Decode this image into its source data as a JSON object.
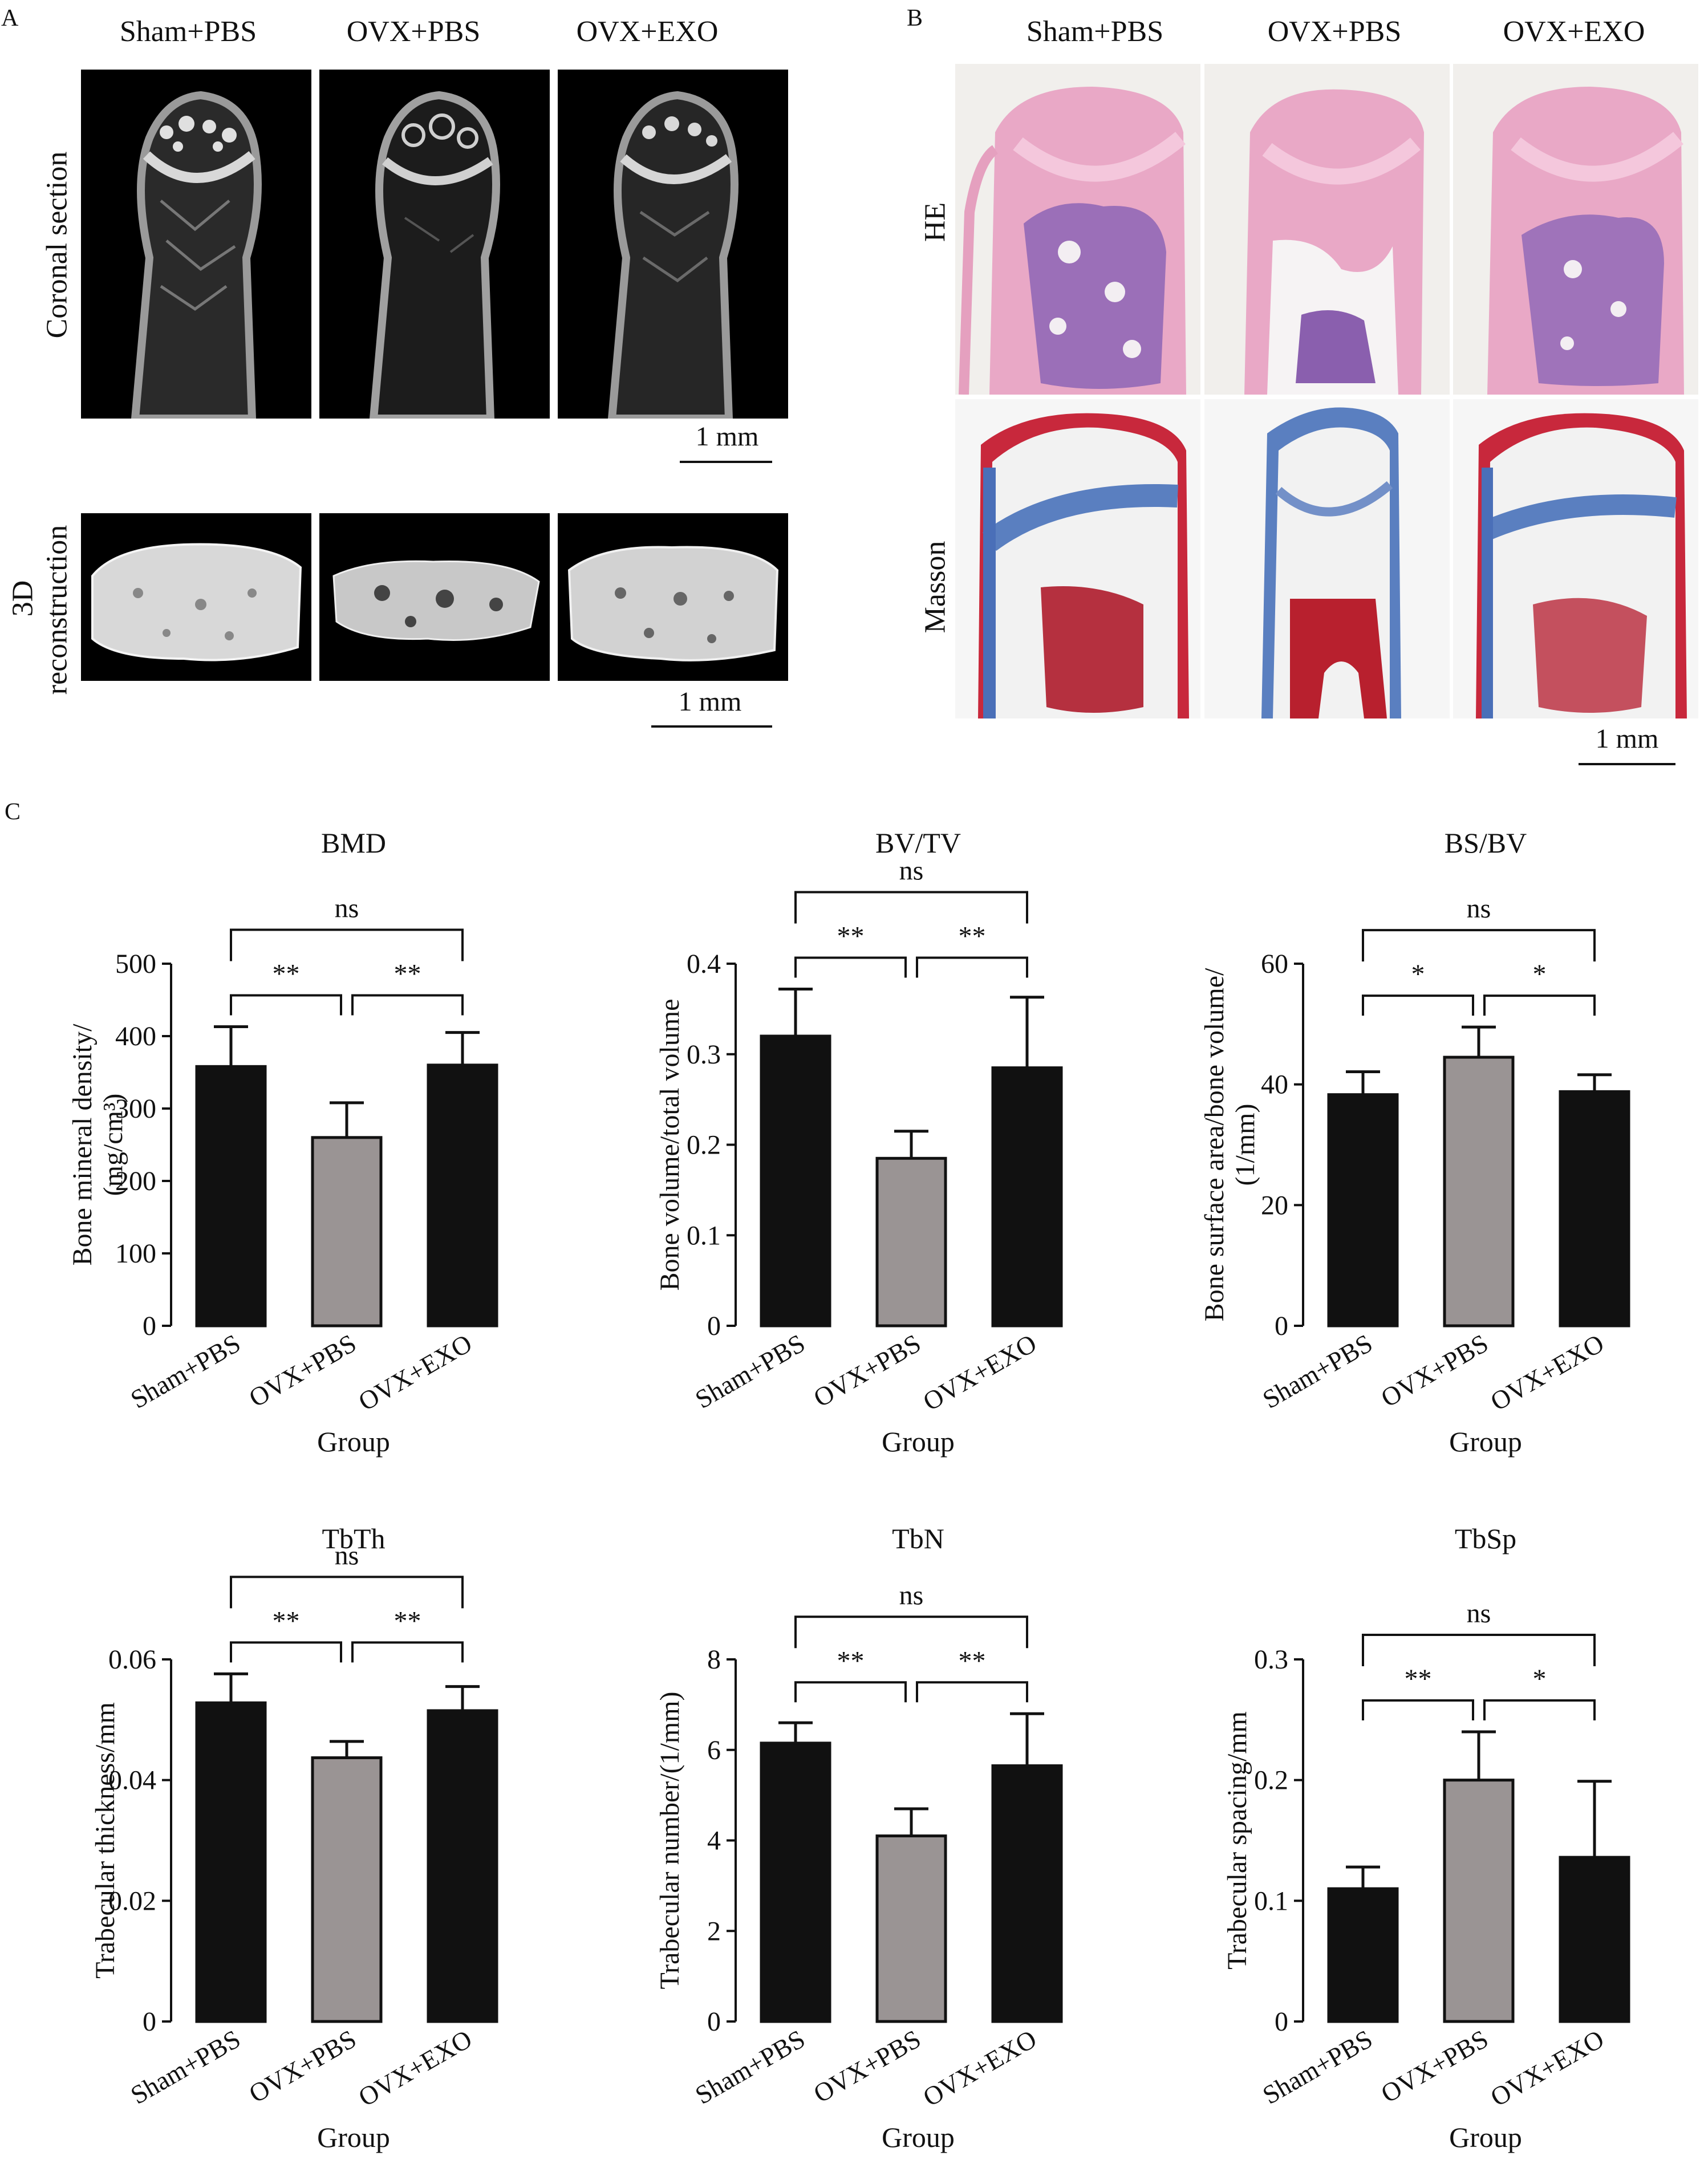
{
  "panels": {
    "A": {
      "letter": "A",
      "columns": [
        "Sham+PBS",
        "OVX+PBS",
        "OVX+EXO"
      ],
      "rows": [
        "Coronal section",
        "3D reconstruction"
      ],
      "row2_line1": "3D",
      "row2_line2": "reconstruction",
      "scale_label": "1 mm"
    },
    "B": {
      "letter": "B",
      "columns": [
        "Sham+PBS",
        "OVX+PBS",
        "OVX+EXO"
      ],
      "rows": [
        "HE",
        "Masson"
      ],
      "scale_label": "1 mm"
    },
    "C": {
      "letter": "C"
    }
  },
  "colors": {
    "black_bar": "#111111",
    "grey_bar": "#9a9494",
    "he_pink": "#e8a8c4",
    "masson_blue": "#5a7fc0",
    "masson_red": "#c8283c"
  },
  "chart_data": [
    {
      "type": "bar",
      "title": "BMD",
      "ylabel_lines": [
        "Bone mineral density/",
        "(mg/cm³)"
      ],
      "xlabel": "Group",
      "categories": [
        "Sham+PBS",
        "OVX+PBS",
        "OVX+EXO"
      ],
      "values": [
        358,
        260,
        360
      ],
      "errors": [
        55,
        48,
        45
      ],
      "ylim": [
        0,
        500
      ],
      "yticks": [
        "0",
        "100",
        "200",
        "300",
        "400",
        "500"
      ],
      "comparisons": [
        {
          "from": 0,
          "to": 1,
          "label": "**"
        },
        {
          "from": 1,
          "to": 2,
          "label": "**"
        },
        {
          "from": 0,
          "to": 2,
          "label": "ns"
        }
      ]
    },
    {
      "type": "bar",
      "title": "BV/TV",
      "ylabel_lines": [
        "Bone volume/total volume"
      ],
      "xlabel": "Group",
      "categories": [
        "Sham+PBS",
        "OVX+PBS",
        "OVX+EXO"
      ],
      "values": [
        0.32,
        0.185,
        0.285
      ],
      "errors": [
        0.052,
        0.03,
        0.078
      ],
      "ylim": [
        0,
        0.4
      ],
      "yticks": [
        "0",
        "0.1",
        "0.2",
        "0.3",
        "0.4"
      ],
      "comparisons": [
        {
          "from": 0,
          "to": 1,
          "label": "**"
        },
        {
          "from": 1,
          "to": 2,
          "label": "**"
        },
        {
          "from": 0,
          "to": 2,
          "label": "ns"
        }
      ]
    },
    {
      "type": "bar",
      "title": "BS/BV",
      "ylabel_lines": [
        "Bone surface area/bone volume/",
        "(1/mm)"
      ],
      "xlabel": "Group",
      "categories": [
        "Sham+PBS",
        "OVX+PBS",
        "OVX+EXO"
      ],
      "values": [
        38.3,
        44.5,
        38.8
      ],
      "errors": [
        3.8,
        5,
        2.8
      ],
      "ylim": [
        0,
        60
      ],
      "yticks": [
        "0",
        "20",
        "40",
        "60"
      ],
      "comparisons": [
        {
          "from": 0,
          "to": 1,
          "label": "*"
        },
        {
          "from": 1,
          "to": 2,
          "label": "*"
        },
        {
          "from": 0,
          "to": 2,
          "label": "ns"
        }
      ]
    },
    {
      "type": "bar",
      "title": "TbTh",
      "ylabel_lines": [
        "Trabecular thickness/mm"
      ],
      "xlabel": "Group",
      "categories": [
        "Sham+PBS",
        "OVX+PBS",
        "OVX+EXO"
      ],
      "values": [
        0.0528,
        0.0437,
        0.0515
      ],
      "errors": [
        0.0048,
        0.0027,
        0.004
      ],
      "ylim": [
        0,
        0.06
      ],
      "yticks": [
        "0",
        "0.02",
        "0.04",
        "0.06"
      ],
      "comparisons": [
        {
          "from": 0,
          "to": 1,
          "label": "**"
        },
        {
          "from": 1,
          "to": 2,
          "label": "**"
        },
        {
          "from": 0,
          "to": 2,
          "label": "ns"
        }
      ]
    },
    {
      "type": "bar",
      "title": "TbN",
      "ylabel_lines": [
        "Trabecular number/(1/mm)"
      ],
      "xlabel": "Group",
      "categories": [
        "Sham+PBS",
        "OVX+PBS",
        "OVX+EXO"
      ],
      "values": [
        6.15,
        4.1,
        5.65
      ],
      "errors": [
        0.45,
        0.6,
        1.15
      ],
      "ylim": [
        0,
        8
      ],
      "yticks": [
        "0",
        "2",
        "4",
        "6",
        "8"
      ],
      "comparisons": [
        {
          "from": 0,
          "to": 1,
          "label": "**"
        },
        {
          "from": 1,
          "to": 2,
          "label": "**"
        },
        {
          "from": 0,
          "to": 2,
          "label": "ns"
        }
      ]
    },
    {
      "type": "bar",
      "title": "TbSp",
      "ylabel_lines": [
        "Trabecular spacing/mm"
      ],
      "xlabel": "Group",
      "categories": [
        "Sham+PBS",
        "OVX+PBS",
        "OVX+EXO"
      ],
      "values": [
        0.11,
        0.2,
        0.136
      ],
      "errors": [
        0.018,
        0.04,
        0.063
      ],
      "ylim": [
        0,
        0.3
      ],
      "yticks": [
        "0",
        "0.1",
        "0.2",
        "0.3"
      ],
      "comparisons": [
        {
          "from": 0,
          "to": 1,
          "label": "**"
        },
        {
          "from": 1,
          "to": 2,
          "label": "*"
        },
        {
          "from": 0,
          "to": 2,
          "label": "ns"
        }
      ]
    }
  ]
}
